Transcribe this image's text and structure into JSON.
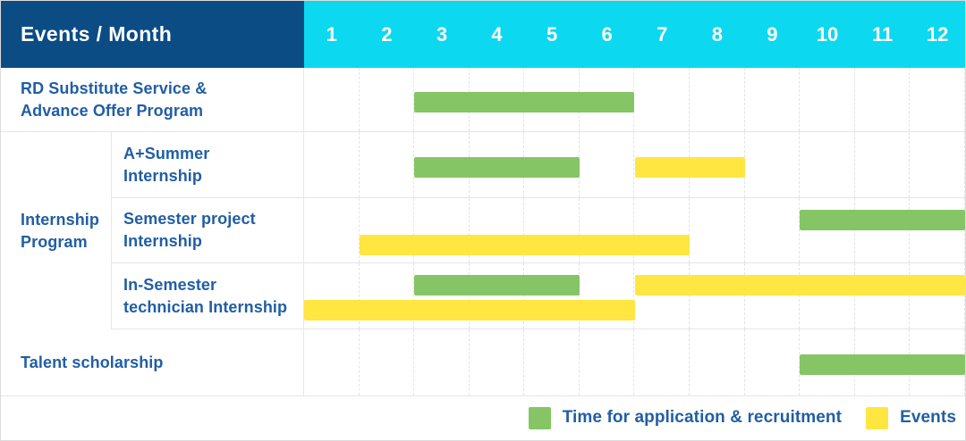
{
  "header": {
    "corner_label": "Events / Month",
    "months": [
      "1",
      "2",
      "3",
      "4",
      "5",
      "6",
      "7",
      "8",
      "9",
      "10",
      "11",
      "12"
    ]
  },
  "colors": {
    "navy": "#0b4c85",
    "cyan": "#0cd8ef",
    "green": "#86c566",
    "yellow": "#ffe640",
    "label_blue": "#215ea4",
    "grid_line": "#e3e3e3"
  },
  "group_label": "Internship\nProgram",
  "chart_data": {
    "type": "bar",
    "subtype": "gantt",
    "unit": "month",
    "x_range": [
      1,
      12
    ],
    "grid": true,
    "rows": [
      {
        "label": "RD Substitute Service &\nAdvance Offer Program",
        "group": null,
        "lanes": 1,
        "bars": [
          {
            "kind": "application",
            "start_month": 3,
            "end_month": 6,
            "lane": 0
          }
        ]
      },
      {
        "label": "A+Summer\nInternship",
        "group": "Internship Program",
        "lanes": 1,
        "bars": [
          {
            "kind": "application",
            "start_month": 3,
            "end_month": 5,
            "lane": 0
          },
          {
            "kind": "event",
            "start_month": 7,
            "end_month": 8,
            "lane": 0
          }
        ]
      },
      {
        "label": "Semester project\nInternship",
        "group": "Internship Program",
        "lanes": 2,
        "bars": [
          {
            "kind": "application",
            "start_month": 10,
            "end_month": 12,
            "lane": 0
          },
          {
            "kind": "event",
            "start_month": 2,
            "end_month": 7,
            "lane": 1
          }
        ]
      },
      {
        "label": "In-Semester\ntechnician Internship",
        "group": "Internship Program",
        "lanes": 2,
        "bars": [
          {
            "kind": "application",
            "start_month": 3,
            "end_month": 5,
            "lane": 0
          },
          {
            "kind": "event",
            "start_month": 7,
            "end_month": 12,
            "lane": 0
          },
          {
            "kind": "event",
            "start_month": 1,
            "end_month": 6,
            "lane": 1
          }
        ]
      },
      {
        "label": "Talent scholarship",
        "group": null,
        "lanes": 1,
        "bars": [
          {
            "kind": "application",
            "start_month": 10,
            "end_month": 12,
            "lane": 0
          }
        ]
      }
    ]
  },
  "legend": [
    {
      "key": "application",
      "label": "Time for application & recruitment",
      "color": "#86c566"
    },
    {
      "key": "event",
      "label": "Events",
      "color": "#ffe640"
    }
  ]
}
